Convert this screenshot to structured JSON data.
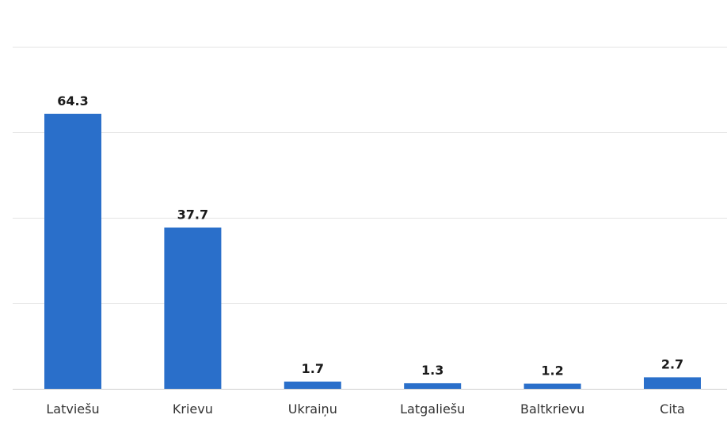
{
  "chart_data": {
    "type": "bar",
    "categories": [
      "Latviešu",
      "Krievu",
      "Ukraiņu",
      "Latgaliešu",
      "Baltkrievu",
      "Cita"
    ],
    "values": [
      64.3,
      37.7,
      1.7,
      1.3,
      1.2,
      2.7
    ],
    "title": "",
    "xlabel": "",
    "ylabel": "",
    "ylim": [
      0,
      80
    ],
    "grid": true,
    "legend": "none",
    "bar_color": "#2a6fca",
    "data_labels": true
  }
}
